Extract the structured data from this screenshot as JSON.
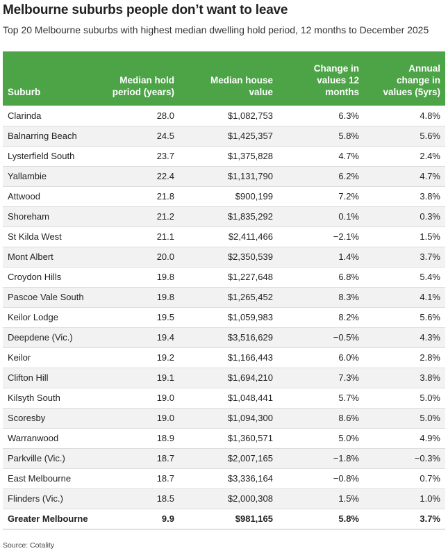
{
  "title": "Melbourne suburbs people don’t want to leave",
  "subtitle": "Top 20 Melbourne suburbs with highest median dwelling hold period, 12 months to December 2025",
  "source": "Source: Cotality",
  "colors": {
    "header_bg": "#4ca446",
    "header_text": "#ffffff",
    "row_alt": "#f2f2f2"
  },
  "chart_data": {
    "type": "table",
    "columns": [
      "Suburb",
      "Median hold\nperiod (years)",
      "Median house\nvalue",
      "Change in\nvalues 12\nmonths",
      "Annual\nchange in\nvalues (5yrs)"
    ],
    "rows": [
      [
        "Clarinda",
        "28.0",
        "$1,082,753",
        "6.3%",
        "4.8%"
      ],
      [
        "Balnarring Beach",
        "24.5",
        "$1,425,357",
        "5.8%",
        "5.6%"
      ],
      [
        "Lysterfield South",
        "23.7",
        "$1,375,828",
        "4.7%",
        "2.4%"
      ],
      [
        "Yallambie",
        "22.4",
        "$1,131,790",
        "6.2%",
        "4.7%"
      ],
      [
        "Attwood",
        "21.8",
        "$900,199",
        "7.2%",
        "3.8%"
      ],
      [
        "Shoreham",
        "21.2",
        "$1,835,292",
        "0.1%",
        "0.3%"
      ],
      [
        "St Kilda West",
        "21.1",
        "$2,411,466",
        "−2.1%",
        "1.5%"
      ],
      [
        "Mont Albert",
        "20.0",
        "$2,350,539",
        "1.4%",
        "3.7%"
      ],
      [
        "Croydon Hills",
        "19.8",
        "$1,227,648",
        "6.8%",
        "5.4%"
      ],
      [
        "Pascoe Vale South",
        "19.8",
        "$1,265,452",
        "8.3%",
        "4.1%"
      ],
      [
        "Keilor Lodge",
        "19.5",
        "$1,059,983",
        "8.2%",
        "5.6%"
      ],
      [
        "Deepdene (Vic.)",
        "19.4",
        "$3,516,629",
        "−0.5%",
        "4.3%"
      ],
      [
        "Keilor",
        "19.2",
        "$1,166,443",
        "6.0%",
        "2.8%"
      ],
      [
        "Clifton Hill",
        "19.1",
        "$1,694,210",
        "7.3%",
        "3.8%"
      ],
      [
        "Kilsyth South",
        "19.0",
        "$1,048,441",
        "5.7%",
        "5.0%"
      ],
      [
        "Scoresby",
        "19.0",
        "$1,094,300",
        "8.6%",
        "5.0%"
      ],
      [
        "Warranwood",
        "18.9",
        "$1,360,571",
        "5.0%",
        "4.9%"
      ],
      [
        "Parkville (Vic.)",
        "18.7",
        "$2,007,165",
        "−1.8%",
        "−0.3%"
      ],
      [
        "East Melbourne",
        "18.7",
        "$3,336,164",
        "−0.8%",
        "0.7%"
      ],
      [
        "Flinders (Vic.)",
        "18.5",
        "$2,000,308",
        "1.5%",
        "1.0%"
      ]
    ],
    "total_row": [
      "Greater Melbourne",
      "9.9",
      "$981,165",
      "5.8%",
      "3.7%"
    ]
  }
}
